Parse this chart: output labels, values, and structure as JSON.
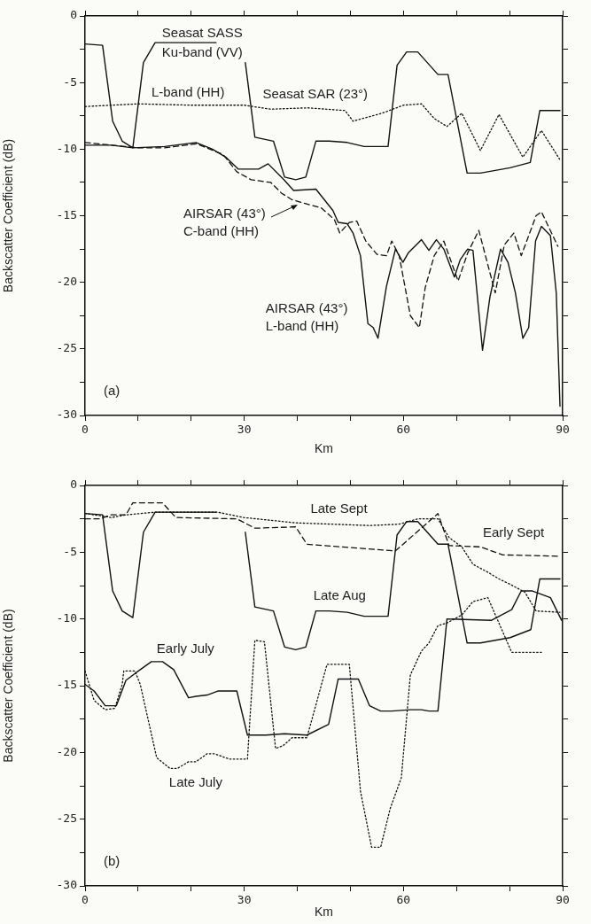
{
  "chart_data": [
    {
      "type": "line",
      "xlabel": "Km",
      "ylabel": "Backscatter Coefficient (dB)",
      "xlim": [
        0,
        90
      ],
      "ylim": [
        -30,
        0
      ],
      "xticks": [
        0,
        {
          "value": 10,
          "label": null
        },
        {
          "value": 20,
          "label": null
        },
        30,
        {
          "value": 40,
          "label": null
        },
        {
          "value": 50,
          "label": null
        },
        60,
        {
          "value": 70,
          "label": null
        },
        {
          "value": 80,
          "label": null
        },
        90
      ],
      "yticks": [
        0,
        {
          "value": -2.5,
          "label": null
        },
        -5,
        {
          "value": -7.5,
          "label": null
        },
        -10,
        {
          "value": -12.5,
          "label": null
        },
        -15,
        {
          "value": -17.5,
          "label": null
        },
        -20,
        {
          "value": -22.5,
          "label": null
        },
        -25,
        {
          "value": -27.5,
          "label": null
        },
        -30
      ],
      "grid": false,
      "legend": false,
      "marker": "none",
      "series": [
        {
          "color": "#111111",
          "line_style": "solid",
          "x": [
            0,
            3.3,
            5.2,
            7,
            9,
            11,
            13.2,
            24.7,
            27,
            30.2,
            32,
            35.5,
            37.6,
            39.7,
            41.6,
            43.5,
            46,
            49.4,
            52.6,
            57.1,
            58.8,
            60.6,
            62.7,
            66.5,
            68.4,
            72,
            74.5,
            80.1,
            83.9,
            85.7,
            89.5
          ],
          "values": [
            -2.1,
            -2.2,
            -7.9,
            -9.4,
            -9.9,
            -3.5,
            -2,
            -2,
            null,
            -3.5,
            -9.1,
            -9.4,
            -12.1,
            -12.3,
            -12.1,
            -9.4,
            -9.4,
            -9.5,
            -9.8,
            -9.8,
            -3.7,
            -2.7,
            -2.7,
            -4.4,
            -4.4,
            -11.8,
            -11.8,
            -11.4,
            -11,
            -7.1,
            -7.1
          ]
        },
        {
          "color": "#111111",
          "line_style": "dotted",
          "x": [
            0,
            10,
            20,
            30,
            35,
            42,
            49,
            50.5,
            56,
            60,
            63.4,
            65.8,
            68.2,
            71,
            74.5,
            78,
            82.5,
            86,
            89.5
          ],
          "values": [
            -6.8,
            -6.6,
            -6.7,
            -6.7,
            -7,
            -6.9,
            -7.1,
            -7.9,
            -7.3,
            -6.7,
            -6.6,
            -7.7,
            -8.3,
            -7.3,
            -10.1,
            -7.4,
            -10.6,
            -8.6,
            -10.8
          ]
        },
        {
          "color": "#111111",
          "line_style": "solid",
          "x": [
            0,
            5,
            9,
            15,
            20.9,
            24,
            26.5,
            28.9,
            32.7,
            34.5,
            37.5,
            39.3,
            43.5,
            46.7,
            47.7,
            49.4,
            50.5,
            51.9,
            53.3,
            54.3,
            55.2,
            56.8,
            58.5,
            59.9,
            60.9,
            63.4,
            64.8,
            66.2,
            67.6,
            69.6,
            70.7,
            72.1,
            73.1,
            74.9,
            76.3,
            78.3,
            79.7,
            81.1,
            82.5,
            83.6,
            84.9,
            86,
            87.7,
            88.8,
            89.5
          ],
          "values": [
            -9.7,
            -9.7,
            -9.9,
            -9.8,
            -9.5,
            -10,
            -10.6,
            -11.5,
            -11.5,
            -11.1,
            -12.3,
            -13.1,
            -13,
            -14.6,
            -15.5,
            -15.6,
            -16.3,
            -18,
            -23.1,
            -23.4,
            -24.2,
            -20.3,
            -17.5,
            -18.5,
            -17.8,
            -16.8,
            -17.6,
            -16.8,
            -17.5,
            -19.6,
            -18.3,
            -17.5,
            -17.6,
            -25.1,
            -21.1,
            -17.5,
            -18.5,
            -20.8,
            -24.2,
            -23.4,
            -16.9,
            -15.8,
            -16.5,
            -20.8,
            -29.3
          ]
        },
        {
          "color": "#111111",
          "line_style": "dashed",
          "x": [
            0,
            5,
            10,
            15,
            21,
            26,
            28.6,
            31.3,
            35,
            37,
            39,
            42.5,
            44.5,
            47,
            48,
            49.8,
            51.2,
            52.9,
            55,
            56.8,
            57.8,
            59.2,
            61.3,
            63,
            64.1,
            65.8,
            67.6,
            70.3,
            72.1,
            74.2,
            77.3,
            79,
            80.8,
            82.2,
            85,
            86,
            89.1
          ],
          "values": [
            -9.5,
            -9.7,
            -9.9,
            -9.9,
            -9.6,
            -10.4,
            -11.7,
            -12.3,
            -12.5,
            -13.3,
            -13.8,
            -14.2,
            -14.4,
            -15.3,
            -16.3,
            -15.5,
            -15.4,
            -16.9,
            -17.9,
            -18,
            -16.9,
            -18,
            -22.5,
            -23.4,
            -20.4,
            -18,
            -16.9,
            -19.9,
            -17.8,
            -16.1,
            -20.8,
            -17.2,
            -16.3,
            -18,
            -15,
            -14.7,
            -17.3
          ]
        }
      ],
      "annotations": [
        "Seasat SASS",
        "Ku-band (VV)",
        "L-band (HH)",
        "Seasat SAR (23°)",
        "AIRSAR (43°)",
        "C-band (HH)",
        "AIRSAR (43°)",
        "L-band (HH)",
        "(a)"
      ]
    },
    {
      "type": "line",
      "xlabel": "Km",
      "ylabel": "Backscatter Coefficient (dB)",
      "xlim": [
        0,
        90
      ],
      "ylim": [
        -30,
        0
      ],
      "xticks": [
        0,
        {
          "value": 10,
          "label": null
        },
        {
          "value": 20,
          "label": null
        },
        30,
        {
          "value": 40,
          "label": null
        },
        {
          "value": 50,
          "label": null
        },
        60,
        {
          "value": 70,
          "label": null
        },
        {
          "value": 80,
          "label": null
        },
        90
      ],
      "yticks": [
        0,
        {
          "value": -2.5,
          "label": null
        },
        -5,
        {
          "value": -7.5,
          "label": null
        },
        -10,
        {
          "value": -12.5,
          "label": null
        },
        -15,
        {
          "value": -17.5,
          "label": null
        },
        -20,
        {
          "value": -22.5,
          "label": null
        },
        -25,
        {
          "value": -27.5,
          "label": null
        },
        -30
      ],
      "grid": false,
      "legend": false,
      "marker": "none",
      "series": [
        {
          "color": "#111111",
          "line_style": "solid",
          "x": [
            0,
            3.3,
            5.2,
            7,
            9,
            11,
            13.2,
            24.7,
            27,
            30.2,
            32,
            35.5,
            37.6,
            39.7,
            41.6,
            43.5,
            46,
            49.4,
            52.6,
            57.1,
            58.8,
            60.6,
            62.7,
            66.5,
            68.4,
            72,
            74.5,
            80.1,
            84,
            85.7,
            89.5
          ],
          "values": [
            -2.1,
            -2.2,
            -7.9,
            -9.4,
            -9.9,
            -3.5,
            -2,
            -2,
            null,
            -3.5,
            -9.1,
            -9.4,
            -12.1,
            -12.3,
            -12.1,
            -9.4,
            -9.4,
            -9.5,
            -9.8,
            -9.8,
            -3.7,
            -2.7,
            -2.7,
            -4.4,
            -4.4,
            -11.8,
            -11.8,
            -11.4,
            -10.8,
            -7,
            -7
          ]
        },
        {
          "color": "#111111",
          "line_style": "dotted",
          "x": [
            0,
            3.5,
            4.9,
            7.7,
            13.2,
            25,
            29.9,
            39.7,
            53.6,
            59.2,
            62.7,
            66.5,
            68.6,
            71,
            73.1,
            75.9,
            78,
            80.1,
            82.9,
            85,
            89.5
          ],
          "values": [
            -2.1,
            -2.3,
            -2.4,
            -2.2,
            -2,
            -2,
            -2.4,
            -2.8,
            -3,
            -2.9,
            -2.5,
            -2.5,
            -3.9,
            -4.6,
            -5.9,
            -6.5,
            -7,
            -7.4,
            -8,
            -9.4,
            -9.5
          ]
        },
        {
          "color": "#111111",
          "line_style": "dashed",
          "x": [
            0,
            2.8,
            4.9,
            7.7,
            9,
            14.6,
            17.1,
            28.6,
            32,
            39.7,
            41.8,
            58.5,
            66.5,
            68.6,
            74.5,
            78.7,
            89.5
          ],
          "values": [
            -2.5,
            -2.5,
            -2.2,
            -2.2,
            -1.3,
            -1.3,
            -2.4,
            -2.5,
            -3.2,
            -3.1,
            -4.4,
            -4.9,
            -2.1,
            -4.5,
            -4.6,
            -5.2,
            -5.3
          ]
        },
        {
          "color": "#111111",
          "line_style": "solid",
          "x": [
            0,
            1.7,
            3.8,
            5.9,
            7.7,
            9.7,
            12.5,
            14.6,
            16.7,
            19.5,
            20.9,
            23,
            25,
            28.6,
            30.6,
            34.1,
            37.6,
            41.8,
            45.9,
            47.7,
            51.5,
            53.6,
            55.7,
            57.8,
            61.3,
            63.4,
            64.8,
            66.5,
            68.2,
            76.6,
            80.4,
            82.2,
            84.3,
            87.7,
            89.8
          ],
          "values": [
            -14.9,
            -15.4,
            -16.5,
            -16.5,
            -14.6,
            -14,
            -13.2,
            -13.2,
            -13.8,
            -15.9,
            -15.8,
            -15.7,
            -15.4,
            -15.4,
            -18.7,
            -18.7,
            -18.6,
            -18.7,
            -17.9,
            -14.5,
            -14.5,
            -16.5,
            -16.9,
            -16.9,
            -16.8,
            -16.8,
            -16.9,
            -16.9,
            -10,
            -10.1,
            -9.3,
            -7.9,
            -7.9,
            -8.4,
            -10.1
          ]
        },
        {
          "color": "#111111",
          "line_style": "dotted",
          "x": [
            0,
            1.7,
            3.8,
            5.6,
            7,
            7.3,
            9.4,
            10.4,
            13.5,
            16,
            17.4,
            19.5,
            20.9,
            23,
            24.4,
            27.2,
            30.6,
            32,
            33.8,
            35.9,
            37.3,
            39,
            41.8,
            45.6,
            49.8,
            51.9,
            54,
            55.7,
            57.5,
            59.6,
            61.3,
            63.4,
            64.8,
            66.5,
            68.2,
            71,
            73.1,
            75.9,
            80.4,
            86
          ],
          "values": [
            -13.9,
            -16.1,
            -16.8,
            -16.7,
            -14.9,
            -13.9,
            -13.9,
            -14.9,
            -20.4,
            -21.2,
            -21.2,
            -20.7,
            -20.7,
            -20.1,
            -20.1,
            -20.5,
            -20.5,
            -11.6,
            -11.7,
            -19.7,
            -19.5,
            -18.9,
            -18.9,
            -13.4,
            -13.4,
            -22.9,
            -27.1,
            -27.1,
            -24.2,
            -21.9,
            -14.2,
            -12.4,
            -11.8,
            -10.5,
            -10.3,
            -9.7,
            -8.7,
            -8.4,
            -12.5,
            -12.5
          ]
        }
      ],
      "annotations": [
        "Late Sept",
        "Early Sept",
        "Late Aug",
        "Early July",
        "Late July",
        "(b)"
      ]
    }
  ]
}
